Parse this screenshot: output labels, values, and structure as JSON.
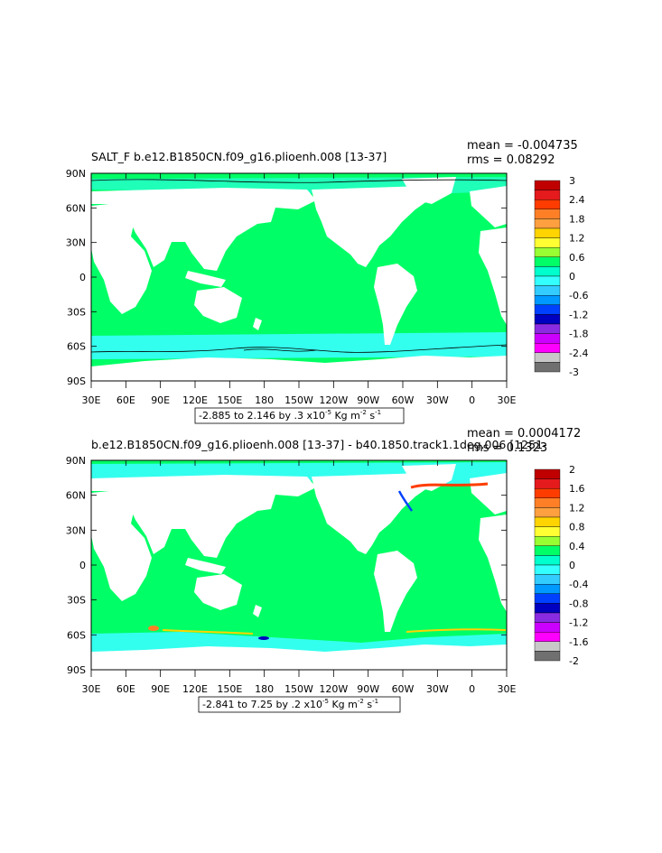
{
  "panels": [
    {
      "title": "SALT_F  b.e12.B1850CN.f09_g16.plioenh.008  [13-37]",
      "mean": "mean = -0.004735",
      "rms": "rms = 0.08292",
      "range_label": "-2.885 to 2.146 by .3 x10",
      "range_exp": "-5",
      "units": " Kg m",
      "units_exp1": "-2",
      "units_mid": " s",
      "units_exp2": "-1",
      "colorbar_labels": [
        "3",
        "2.4",
        "1.8",
        "1.2",
        "0.6",
        "0",
        "-0.6",
        "-1.2",
        "-1.8",
        "-2.4",
        "-3"
      ],
      "colorbar_colors": [
        "#c00000",
        "#e41a1c",
        "#ff3c00",
        "#ff7f27",
        "#ffa040",
        "#ffd400",
        "#ffff33",
        "#99ff33",
        "#00ff66",
        "#00ffcc",
        "#33ffff",
        "#33ccff",
        "#0099ff",
        "#0040ff",
        "#0000c0",
        "#8a2be2",
        "#cc00ff",
        "#ff00ff",
        "#c8c8c8",
        "#707070"
      ]
    },
    {
      "title": "b.e12.B1850CN.f09_g16.plioenh.008  [13-37]  -  b40.1850.track1.1deg.006  [1251-",
      "mean": "mean = 0.0004172",
      "rms": "rms = 0.1323",
      "range_label": "-2.841 to 7.25 by .2 x10",
      "range_exp": "-5",
      "units": " Kg m",
      "units_exp1": "-2",
      "units_mid": " s",
      "units_exp2": "-1",
      "colorbar_labels": [
        "2",
        "1.6",
        "1.2",
        "0.8",
        "0.4",
        "0",
        "-0.4",
        "-0.8",
        "-1.2",
        "-1.6",
        "-2"
      ],
      "colorbar_colors": [
        "#c00000",
        "#e41a1c",
        "#ff3c00",
        "#ff7f27",
        "#ffa040",
        "#ffd400",
        "#ffff33",
        "#99ff33",
        "#00ff66",
        "#00ffcc",
        "#33ffff",
        "#33ccff",
        "#0099ff",
        "#0040ff",
        "#0000c0",
        "#8a2be2",
        "#cc00ff",
        "#ff00ff",
        "#c8c8c8",
        "#707070"
      ]
    }
  ],
  "lat_labels": [
    "90N",
    "60N",
    "30N",
    "0",
    "30S",
    "60S",
    "90S"
  ],
  "lon_labels": [
    "30E",
    "60E",
    "90E",
    "120E",
    "150E",
    "180",
    "150W",
    "120W",
    "90W",
    "60W",
    "30W",
    "0",
    "30E"
  ],
  "colors": {
    "ocean": "#00ff66",
    "land": "#ffffff",
    "southern_ocean": "#33ffee"
  }
}
